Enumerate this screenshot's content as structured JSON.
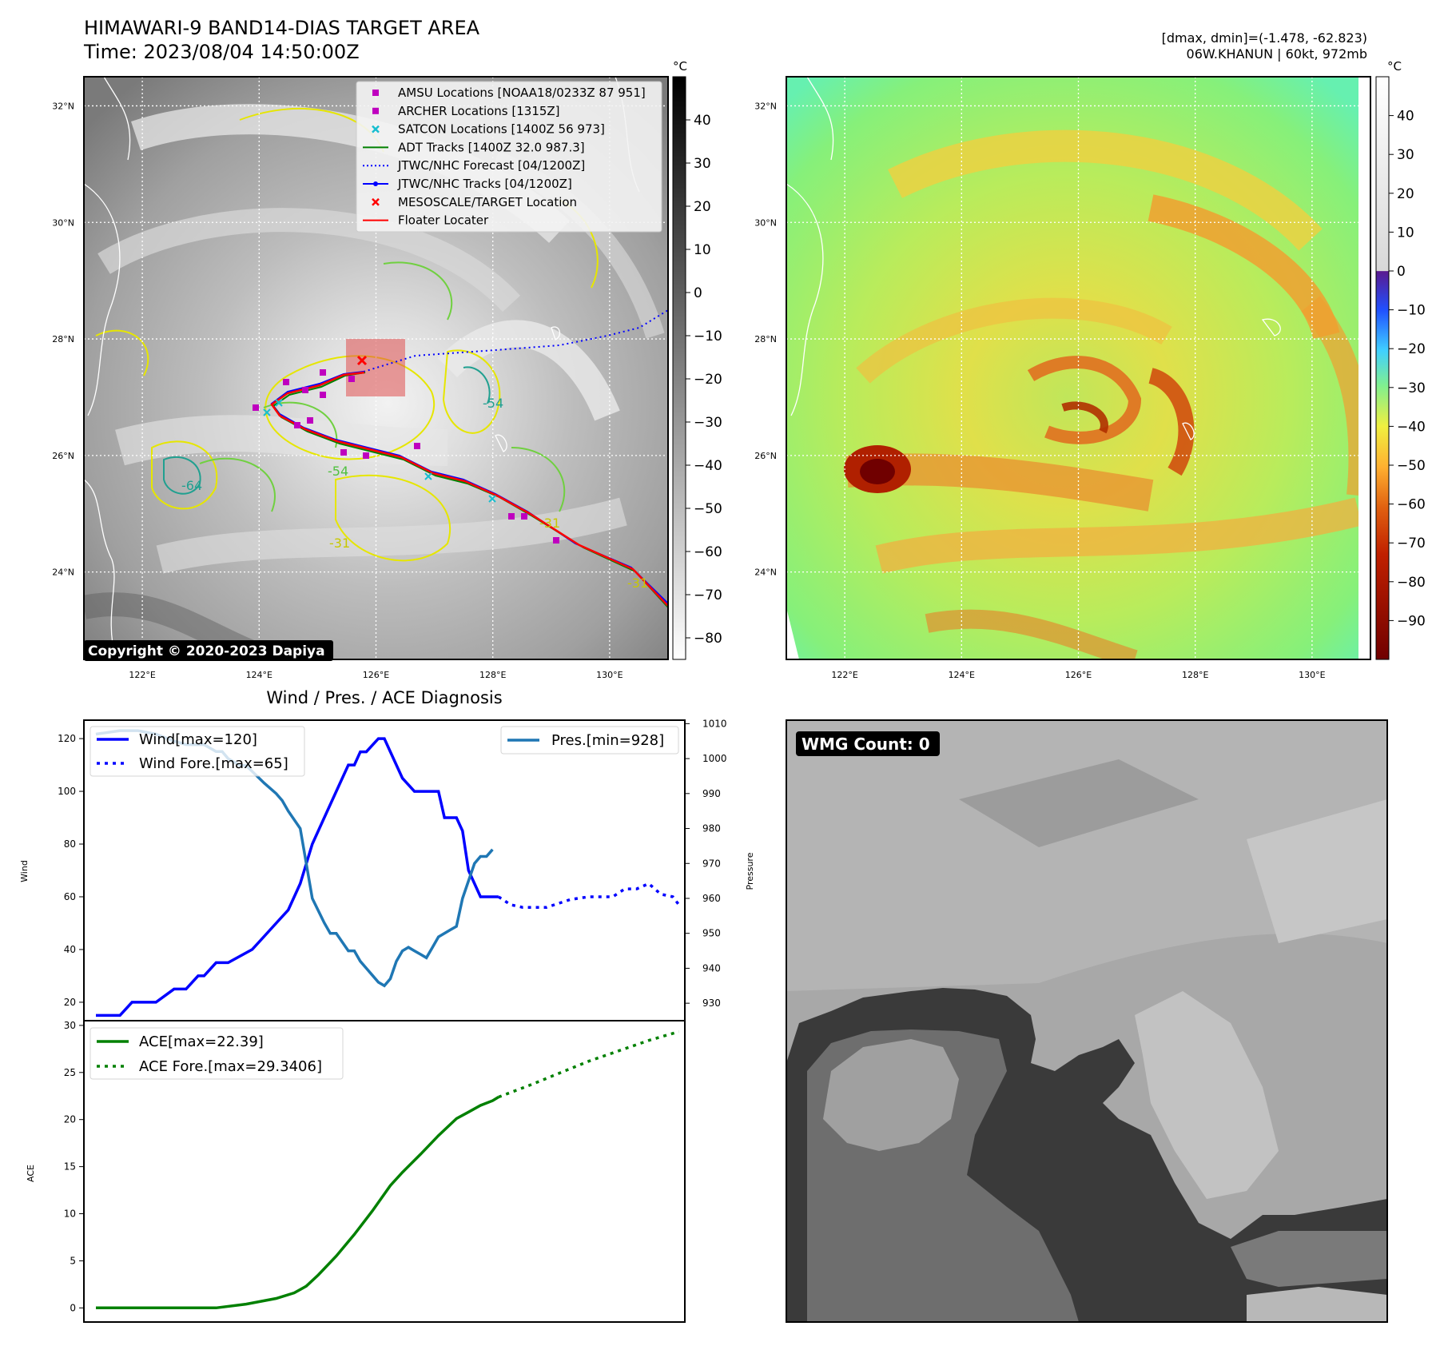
{
  "header": {
    "title_line1": "HIMAWARI-9 BAND14-DIAS TARGET AREA",
    "title_line2": "Time: 2023/08/04 14:50:00Z",
    "right_line1": "[dmax, dmin]=(-1.478, -62.823)",
    "right_line2": "06W.KHANUN | 60kt, 972mb"
  },
  "copyright": "Copyright © 2020-2023 Dapiya",
  "diag_title": "Wind / Pres. / ACE Diagnosis",
  "wmg_label": "WMG Count: 0",
  "units_label": "°C",
  "map_axes": {
    "lat_labels": [
      "32°N",
      "30°N",
      "28°N",
      "26°N",
      "24°N"
    ],
    "lat_values": [
      32,
      30,
      28,
      26,
      24
    ],
    "lon_labels": [
      "122°E",
      "124°E",
      "126°E",
      "128°E",
      "130°E"
    ],
    "lon_values": [
      122,
      124,
      126,
      128,
      130
    ],
    "lon_range": [
      121,
      131
    ],
    "lat_range": [
      22.5,
      32.5
    ]
  },
  "gray_colorbar": {
    "ticks": [
      "40",
      "30",
      "20",
      "10",
      "0",
      "−10",
      "−20",
      "−30",
      "−40",
      "−50",
      "−60",
      "−70",
      "−80"
    ],
    "tick_values": [
      40,
      30,
      20,
      10,
      0,
      -10,
      -20,
      -30,
      -40,
      -50,
      -60,
      -70,
      -80
    ],
    "range": [
      -85,
      50
    ]
  },
  "color_colorbar": {
    "ticks": [
      "40",
      "30",
      "20",
      "10",
      "0",
      "−10",
      "−20",
      "−30",
      "−40",
      "−50",
      "−60",
      "−70",
      "−80",
      "−90"
    ],
    "tick_values": [
      40,
      30,
      20,
      10,
      0,
      -10,
      -20,
      -30,
      -40,
      -50,
      -60,
      -70,
      -80,
      -90
    ],
    "range": [
      -100,
      50
    ]
  },
  "legend": [
    {
      "label": "AMSU Locations [NOAA18/0233Z 87 951]",
      "marker": "square",
      "color": "#bf00bf"
    },
    {
      "label": "ARCHER Locations [1315Z]",
      "marker": "square",
      "color": "#bf00bf"
    },
    {
      "label": "SATCON Locations [1400Z 56 973]",
      "marker": "x",
      "color": "#17becf"
    },
    {
      "label": "ADT Tracks [1400Z 32.0 987.3]",
      "marker": "line",
      "color": "#008000"
    },
    {
      "label": "JTWC/NHC Forecast [04/1200Z]",
      "marker": "dotted",
      "color": "#0000ff"
    },
    {
      "label": "JTWC/NHC Tracks [04/1200Z]",
      "marker": "line-dot",
      "color": "#0000ff"
    },
    {
      "label": "MESOSCALE/TARGET Location",
      "marker": "x",
      "color": "#ff0000"
    },
    {
      "label": "Floater Locater",
      "marker": "line",
      "color": "#ff0000"
    }
  ],
  "contour_labels": [
    "-31",
    "-54",
    "-64"
  ],
  "chart_data": [
    {
      "type": "line",
      "name": "wind-pressure",
      "ylabel": "Wind",
      "ylabel_right": "Pressure",
      "ylim": [
        13,
        127
      ],
      "ylim_right": [
        925,
        1011
      ],
      "yticks": [
        20,
        40,
        60,
        80,
        100,
        120
      ],
      "yticks_right": [
        930,
        940,
        950,
        960,
        970,
        980,
        990,
        1000,
        1010
      ],
      "xlim": [
        -2,
        98
      ],
      "legend_left": [
        "Wind[max=120]",
        "Wind Fore.[max=65]"
      ],
      "legend_right": [
        "Pres.[min=928]"
      ],
      "series": [
        {
          "key": "wind",
          "color": "#0000ff",
          "values": [
            [
              0,
              15
            ],
            [
              4,
              15
            ],
            [
              6,
              20
            ],
            [
              10,
              20
            ],
            [
              13,
              25
            ],
            [
              15,
              25
            ],
            [
              17,
              30
            ],
            [
              18,
              30
            ],
            [
              20,
              35
            ],
            [
              22,
              35
            ],
            [
              26,
              40
            ],
            [
              28,
              45
            ],
            [
              30,
              50
            ],
            [
              32,
              55
            ],
            [
              33,
              60
            ],
            [
              34,
              65
            ],
            [
              36,
              80
            ],
            [
              38,
              90
            ],
            [
              40,
              100
            ],
            [
              42,
              110
            ],
            [
              43,
              110
            ],
            [
              44,
              115
            ],
            [
              45,
              115
            ],
            [
              47,
              120
            ],
            [
              48,
              120
            ],
            [
              49,
              115
            ],
            [
              51,
              105
            ],
            [
              53,
              100
            ],
            [
              57,
              100
            ],
            [
              58,
              90
            ],
            [
              60,
              90
            ],
            [
              61,
              85
            ],
            [
              62,
              70
            ],
            [
              63,
              65
            ],
            [
              64,
              60
            ],
            [
              67,
              60
            ]
          ]
        },
        {
          "key": "wind_fore",
          "color": "#0000ff",
          "dotted": true,
          "values": [
            [
              67,
              60
            ],
            [
              69,
              57
            ],
            [
              71,
              56
            ],
            [
              75,
              56
            ],
            [
              79,
              59
            ],
            [
              82,
              60
            ],
            [
              86,
              60
            ],
            [
              88,
              63
            ],
            [
              90,
              63
            ],
            [
              92,
              65
            ],
            [
              94,
              61
            ],
            [
              96,
              60
            ],
            [
              97,
              57
            ]
          ]
        },
        {
          "key": "pressure",
          "color": "#1f77b4",
          "axis": "right",
          "values": [
            [
              0,
              1007
            ],
            [
              4,
              1008
            ],
            [
              7,
              1008
            ],
            [
              10,
              1007
            ],
            [
              13,
              1005
            ],
            [
              15,
              1004
            ],
            [
              18,
              1004
            ],
            [
              20,
              1002
            ],
            [
              21,
              1002
            ],
            [
              22,
              1000
            ],
            [
              24,
              998
            ],
            [
              25,
              998
            ],
            [
              28,
              993
            ],
            [
              30,
              990
            ],
            [
              31,
              988
            ],
            [
              32,
              985
            ],
            [
              34,
              980
            ],
            [
              36,
              960
            ],
            [
              38,
              953
            ],
            [
              39,
              950
            ],
            [
              40,
              950
            ],
            [
              42,
              945
            ],
            [
              43,
              945
            ],
            [
              44,
              942
            ],
            [
              45,
              940
            ],
            [
              46,
              938
            ],
            [
              47,
              936
            ],
            [
              48,
              935
            ],
            [
              49,
              937
            ],
            [
              50,
              942
            ],
            [
              51,
              945
            ],
            [
              52,
              946
            ],
            [
              53,
              945
            ],
            [
              54,
              944
            ],
            [
              55,
              943
            ],
            [
              56,
              946
            ],
            [
              57,
              949
            ],
            [
              59,
              951
            ],
            [
              60,
              952
            ],
            [
              61,
              960
            ],
            [
              62,
              965
            ],
            [
              63,
              970
            ],
            [
              64,
              972
            ],
            [
              65,
              972
            ],
            [
              66,
              974
            ]
          ]
        }
      ]
    },
    {
      "type": "line",
      "name": "ace",
      "ylabel": "ACE",
      "ylim": [
        -1.5,
        30.5
      ],
      "yticks": [
        0,
        5,
        10,
        15,
        20,
        25,
        30
      ],
      "xlim": [
        -2,
        98
      ],
      "legend": [
        "ACE[max=22.39]",
        "ACE Fore.[max=29.3406]"
      ],
      "series": [
        {
          "key": "ace",
          "color": "#008000",
          "values": [
            [
              0,
              0
            ],
            [
              10,
              0
            ],
            [
              20,
              0
            ],
            [
              25,
              0.4
            ],
            [
              30,
              1.0
            ],
            [
              33,
              1.6
            ],
            [
              35,
              2.3
            ],
            [
              37,
              3.5
            ],
            [
              40,
              5.5
            ],
            [
              43,
              7.8
            ],
            [
              46,
              10.3
            ],
            [
              49,
              13.0
            ],
            [
              51,
              14.4
            ],
            [
              54,
              16.3
            ],
            [
              57,
              18.3
            ],
            [
              60,
              20.1
            ],
            [
              62,
              20.8
            ],
            [
              64,
              21.5
            ],
            [
              66,
              22.0
            ],
            [
              67,
              22.39
            ]
          ]
        },
        {
          "key": "ace_fore",
          "color": "#008000",
          "dotted": true,
          "values": [
            [
              67,
              22.39
            ],
            [
              72,
              23.6
            ],
            [
              77,
              24.9
            ],
            [
              82,
              26.2
            ],
            [
              87,
              27.3
            ],
            [
              92,
              28.4
            ],
            [
              97,
              29.34
            ]
          ]
        }
      ]
    }
  ]
}
